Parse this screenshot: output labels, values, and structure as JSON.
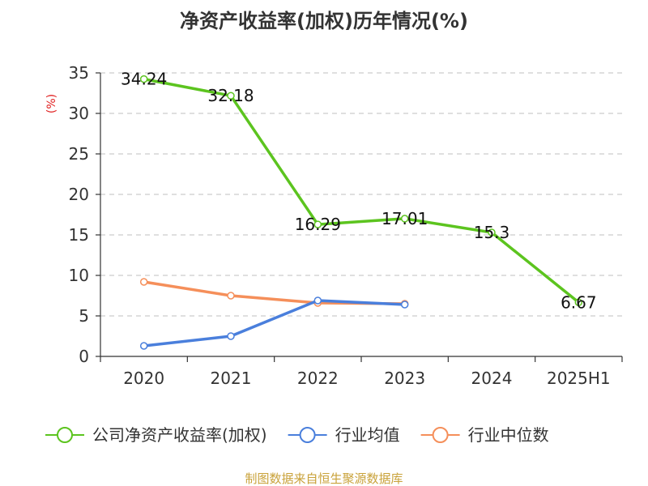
{
  "chart_data": {
    "type": "line",
    "title": "净资产收益率(加权)历年情况(%)",
    "ylabel": "(%)",
    "xlabel": "",
    "categories": [
      "2020",
      "2021",
      "2022",
      "2023",
      "2024",
      "2025H1"
    ],
    "ylim": [
      0,
      35
    ],
    "yticks": [
      0,
      5,
      10,
      15,
      20,
      25,
      30,
      35
    ],
    "grid": true,
    "legend_position": "bottom",
    "series": [
      {
        "name": "公司净资产收益率(加权)",
        "color": "#5cc41f",
        "values": [
          34.24,
          32.18,
          16.29,
          17.01,
          15.3,
          6.67
        ],
        "labels": [
          "34.24",
          "32.18",
          "16.29",
          "17.01",
          "15.3",
          "6.67"
        ]
      },
      {
        "name": "行业均值",
        "color": "#4a7fdc",
        "values": [
          1.3,
          2.5,
          6.9,
          6.4,
          null,
          null
        ]
      },
      {
        "name": "行业中位数",
        "color": "#f58f5a",
        "values": [
          9.2,
          7.5,
          6.6,
          6.5,
          null,
          null
        ]
      }
    ]
  },
  "source_text": "制图数据来自恒生聚源数据库",
  "colors": {
    "unit": "#e02020",
    "source": "#c9a23a",
    "axis": "#333333",
    "grid": "#cccccc"
  }
}
